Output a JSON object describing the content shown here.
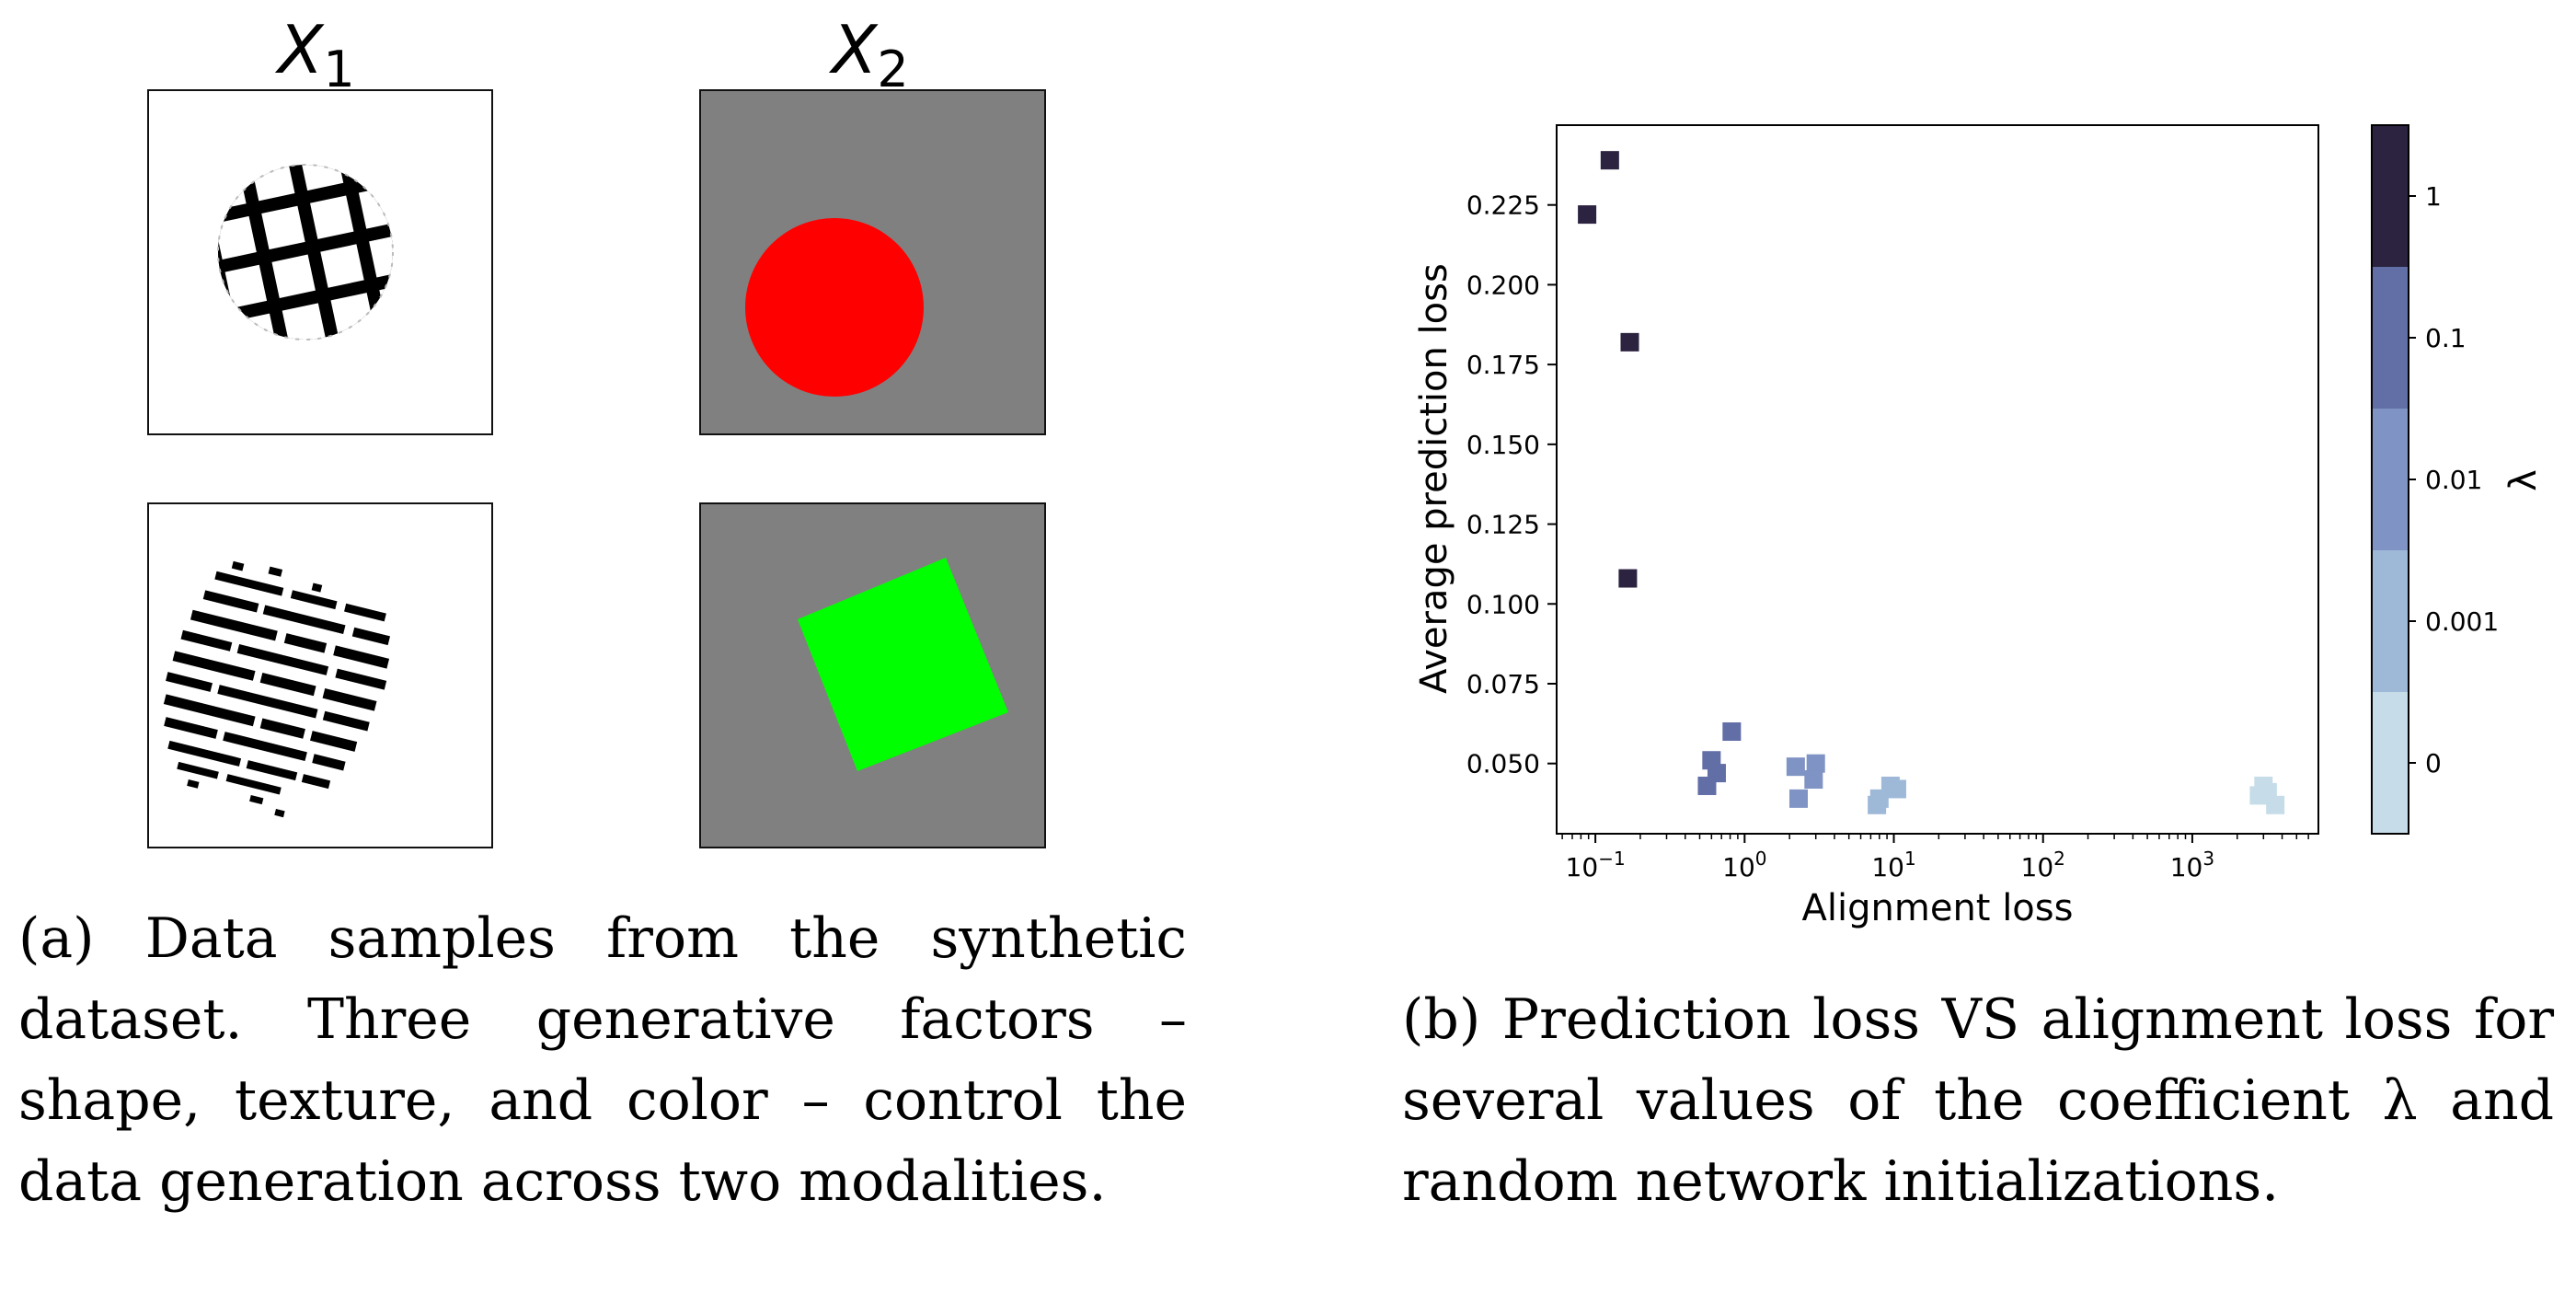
{
  "panel_a": {
    "col_headers": [
      {
        "base": "X",
        "sub": "1"
      },
      {
        "base": "X",
        "sub": "2"
      }
    ],
    "tile_colors": {
      "background_gray": "#808080",
      "circle_fill": "#ff0000",
      "square_fill": "#00ff00",
      "texture_ink": "#000000"
    },
    "caption_lines": [
      "(a) Data samples from the synthetic",
      "dataset. Three generative factors –",
      "shape, texture, and color – control the",
      "data generation across two modalities."
    ]
  },
  "panel_b": {
    "caption_lines": [
      "(b) Prediction loss VS alignment loss for",
      "several values of the coefficient λ and",
      "random network initializations."
    ]
  },
  "chart_data": {
    "type": "scatter",
    "xlabel": "Alignment loss",
    "ylabel": "Average prediction loss",
    "xscale": "log",
    "xlim": [
      0.055,
      7000
    ],
    "ylim": [
      0.028,
      0.25
    ],
    "xticks": [
      {
        "value": 0.1,
        "base": "10",
        "exp": "−1"
      },
      {
        "value": 1,
        "base": "10",
        "exp": "0"
      },
      {
        "value": 10,
        "base": "10",
        "exp": "1"
      },
      {
        "value": 100,
        "base": "10",
        "exp": "2"
      },
      {
        "value": 1000,
        "base": "10",
        "exp": "3"
      }
    ],
    "yticks": [
      {
        "value": 0.05,
        "label": "0.050"
      },
      {
        "value": 0.075,
        "label": "0.075"
      },
      {
        "value": 0.1,
        "label": "0.100"
      },
      {
        "value": 0.125,
        "label": "0.125"
      },
      {
        "value": 0.15,
        "label": "0.150"
      },
      {
        "value": 0.175,
        "label": "0.175"
      },
      {
        "value": 0.2,
        "label": "0.200"
      },
      {
        "value": 0.225,
        "label": "0.225"
      }
    ],
    "grid": false,
    "marker": "square",
    "colorbar": {
      "label": "λ",
      "levels": [
        {
          "label": "0",
          "color": "#c6dde9"
        },
        {
          "label": "0.001",
          "color": "#9eb9d8"
        },
        {
          "label": "0.01",
          "color": "#7f93c4"
        },
        {
          "label": "0.1",
          "color": "#626ea6"
        },
        {
          "label": "1",
          "color": "#2b2340"
        }
      ]
    },
    "series": [
      {
        "lambda": "1",
        "color": "#2b2340",
        "points": [
          [
            0.125,
            0.239
          ],
          [
            0.088,
            0.222
          ],
          [
            0.17,
            0.182
          ],
          [
            0.165,
            0.108
          ]
        ]
      },
      {
        "lambda": "0.1",
        "color": "#626ea6",
        "points": [
          [
            0.82,
            0.06
          ],
          [
            0.6,
            0.051
          ],
          [
            0.65,
            0.047
          ],
          [
            0.56,
            0.043
          ]
        ]
      },
      {
        "lambda": "0.01",
        "color": "#7f93c4",
        "points": [
          [
            2.2,
            0.049
          ],
          [
            3.0,
            0.05
          ],
          [
            2.9,
            0.045
          ],
          [
            2.3,
            0.039
          ]
        ]
      },
      {
        "lambda": "0.001",
        "color": "#9eb9d8",
        "points": [
          [
            9.5,
            0.043
          ],
          [
            10.5,
            0.042
          ],
          [
            8.0,
            0.039
          ],
          [
            7.7,
            0.037
          ]
        ]
      },
      {
        "lambda": "0",
        "color": "#c6dde9",
        "points": [
          [
            3000,
            0.043
          ],
          [
            2800,
            0.04
          ],
          [
            3200,
            0.041
          ],
          [
            3600,
            0.037
          ]
        ]
      }
    ]
  }
}
